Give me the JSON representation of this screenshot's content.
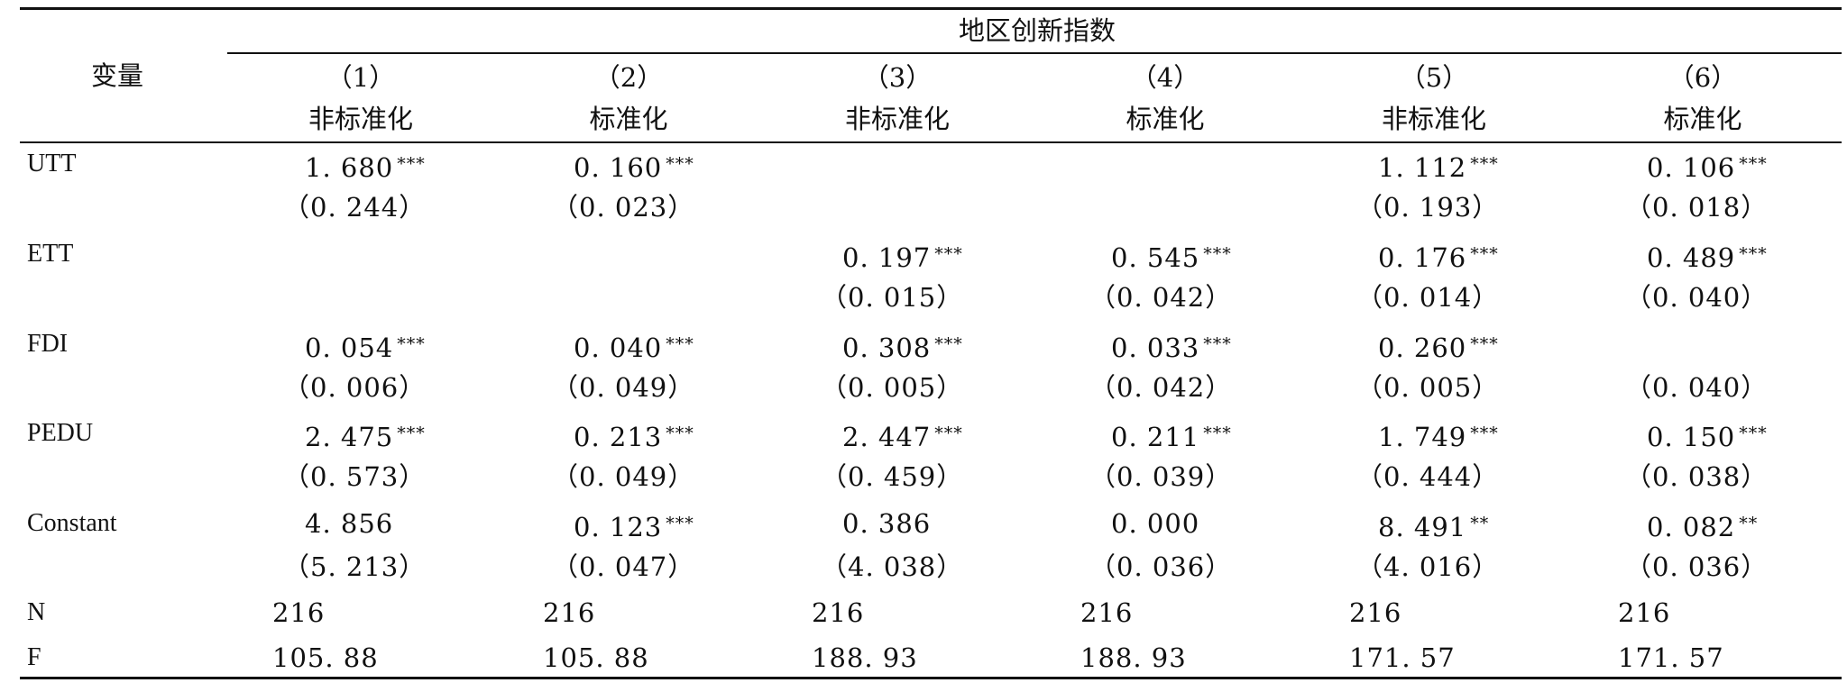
{
  "table": {
    "var_header": "变量",
    "group_header": "地区创新指数",
    "columns": [
      {
        "num": "（1）",
        "type": "非标准化"
      },
      {
        "num": "（2）",
        "type": "标准化"
      },
      {
        "num": "（3）",
        "type": "非标准化"
      },
      {
        "num": "（4）",
        "type": "标准化"
      },
      {
        "num": "（5）",
        "type": "非标准化"
      },
      {
        "num": "（6）",
        "type": "标准化"
      }
    ],
    "rows": [
      {
        "label": "UTT",
        "coef": [
          {
            "v": "1. 680",
            "s": "***"
          },
          {
            "v": "0. 160",
            "s": "***"
          },
          {
            "v": "",
            "s": ""
          },
          {
            "v": "",
            "s": ""
          },
          {
            "v": "1. 112",
            "s": "***"
          },
          {
            "v": "0. 106",
            "s": "***"
          }
        ],
        "se": [
          "（0. 244）",
          "（0. 023）",
          "",
          "",
          "（0. 193）",
          "（0. 018）"
        ]
      },
      {
        "label": "ETT",
        "coef": [
          {
            "v": "",
            "s": ""
          },
          {
            "v": "",
            "s": ""
          },
          {
            "v": "0. 197",
            "s": "***"
          },
          {
            "v": "0. 545",
            "s": "***"
          },
          {
            "v": "0. 176",
            "s": "***"
          },
          {
            "v": "0. 489",
            "s": "***"
          }
        ],
        "se": [
          "",
          "",
          "（0. 015）",
          "（0. 042）",
          "（0. 014）",
          "（0. 040）"
        ]
      },
      {
        "label": "FDI",
        "coef": [
          {
            "v": "0. 054",
            "s": "***"
          },
          {
            "v": "0. 040",
            "s": "***"
          },
          {
            "v": "0. 308",
            "s": "***"
          },
          {
            "v": "0. 033",
            "s": "***"
          },
          {
            "v": "0. 260",
            "s": "***"
          },
          {
            "v": "",
            "s": ""
          }
        ],
        "se": [
          "（0. 006）",
          "（0. 049）",
          "（0. 005）",
          "（0. 042）",
          "（0. 005）",
          "（0. 040）"
        ]
      },
      {
        "label": "PEDU",
        "coef": [
          {
            "v": "2. 475",
            "s": "***"
          },
          {
            "v": "0. 213",
            "s": "***"
          },
          {
            "v": "2. 447",
            "s": "***"
          },
          {
            "v": "0. 211",
            "s": "***"
          },
          {
            "v": "1. 749",
            "s": "***"
          },
          {
            "v": "0. 150",
            "s": "***"
          }
        ],
        "se": [
          "（0. 573）",
          "（0. 049）",
          "（0. 459）",
          "（0. 039）",
          "（0. 444）",
          "（0. 038）"
        ]
      },
      {
        "label": "Constant",
        "coef": [
          {
            "v": "4. 856",
            "s": ""
          },
          {
            "v": "0. 123",
            "s": "***"
          },
          {
            "v": "0. 386",
            "s": ""
          },
          {
            "v": "0. 000",
            "s": ""
          },
          {
            "v": "8. 491",
            "s": "**"
          },
          {
            "v": "0. 082",
            "s": "**"
          }
        ],
        "se": [
          "（5. 213）",
          "（0. 047）",
          "（4. 038）",
          "（0. 036）",
          "（4. 016）",
          "（0. 036）"
        ]
      }
    ],
    "n_row": {
      "label": "N",
      "values": [
        "216",
        "216",
        "216",
        "216",
        "216",
        "216"
      ]
    },
    "f_row": {
      "label": "F",
      "values": [
        "105. 88",
        "105. 88",
        "188. 93",
        "188. 93",
        "171. 57",
        "171. 57"
      ]
    }
  }
}
